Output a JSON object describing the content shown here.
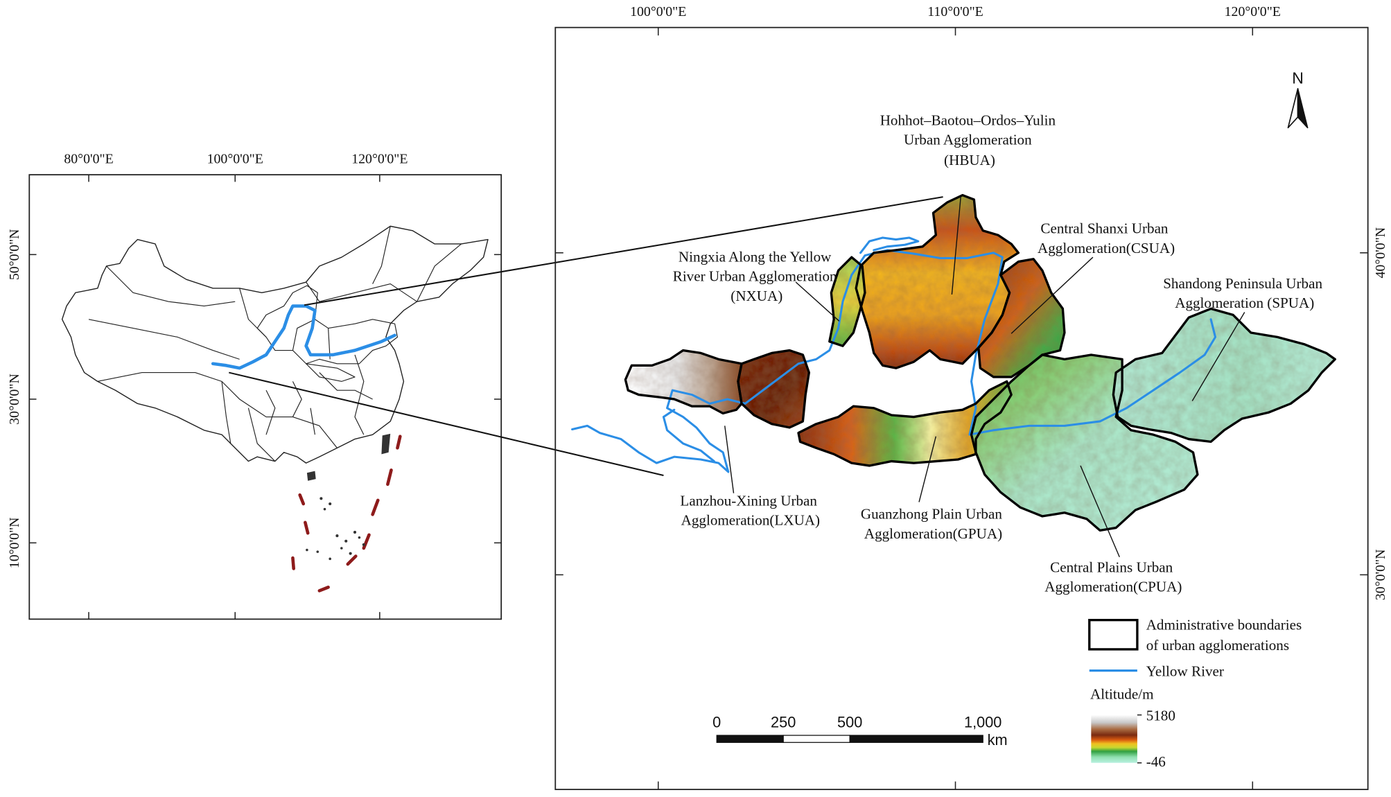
{
  "figure": {
    "inset_map": {
      "lon_labels": [
        "80°0'0\"E",
        "100°0'0\"E",
        "120°0'0\"E"
      ],
      "lat_labels": [
        "50°0'0\"N",
        "30°0'0\"N",
        "10°0'0\"N"
      ]
    },
    "main_map": {
      "lon_labels": [
        "100°0'0\"E",
        "110°0'0\"E",
        "120°0'0\"E"
      ],
      "lat_labels": [
        "40°0'0\"N",
        "30°0'0\"N"
      ],
      "north_label": "N"
    }
  },
  "regions": {
    "hbua": [
      "Hohhot–Baotou–Ordos–Yulin",
      "Urban Agglomeration",
      "(HBUA)"
    ],
    "csua": [
      "Central Shanxi Urban",
      "Agglomeration(CSUA)"
    ],
    "nxua": [
      "Ningxia Along the Yellow",
      "River Urban Agglomeration",
      "(NXUA)"
    ],
    "spua": [
      "Shandong Peninsula Urban",
      "Agglomeration (SPUA)"
    ],
    "lxua": [
      "Lanzhou-Xining Urban",
      "Agglomeration(LXUA)"
    ],
    "gpua": [
      "Guanzhong Plain Urban",
      "Agglomeration(GPUA)"
    ],
    "cpua": [
      "Central Plains Urban",
      "Agglomeration(CPUA)"
    ]
  },
  "legend": {
    "boundary": [
      "Administrative boundaries",
      "of urban agglomerations"
    ],
    "river": "Yellow River",
    "altitude_title": "Altitude/m",
    "altitude_max": "5180",
    "altitude_min": "-46"
  },
  "scale_bar": {
    "ticks": [
      "0",
      "250",
      "500",
      "1,000"
    ],
    "unit": "km"
  },
  "colors": {
    "yellow_river": "#2b8ee6",
    "boundary": "#000000",
    "inset_highlight": "#d6f5c2",
    "nine_dash_line": "#8e1b1b"
  }
}
